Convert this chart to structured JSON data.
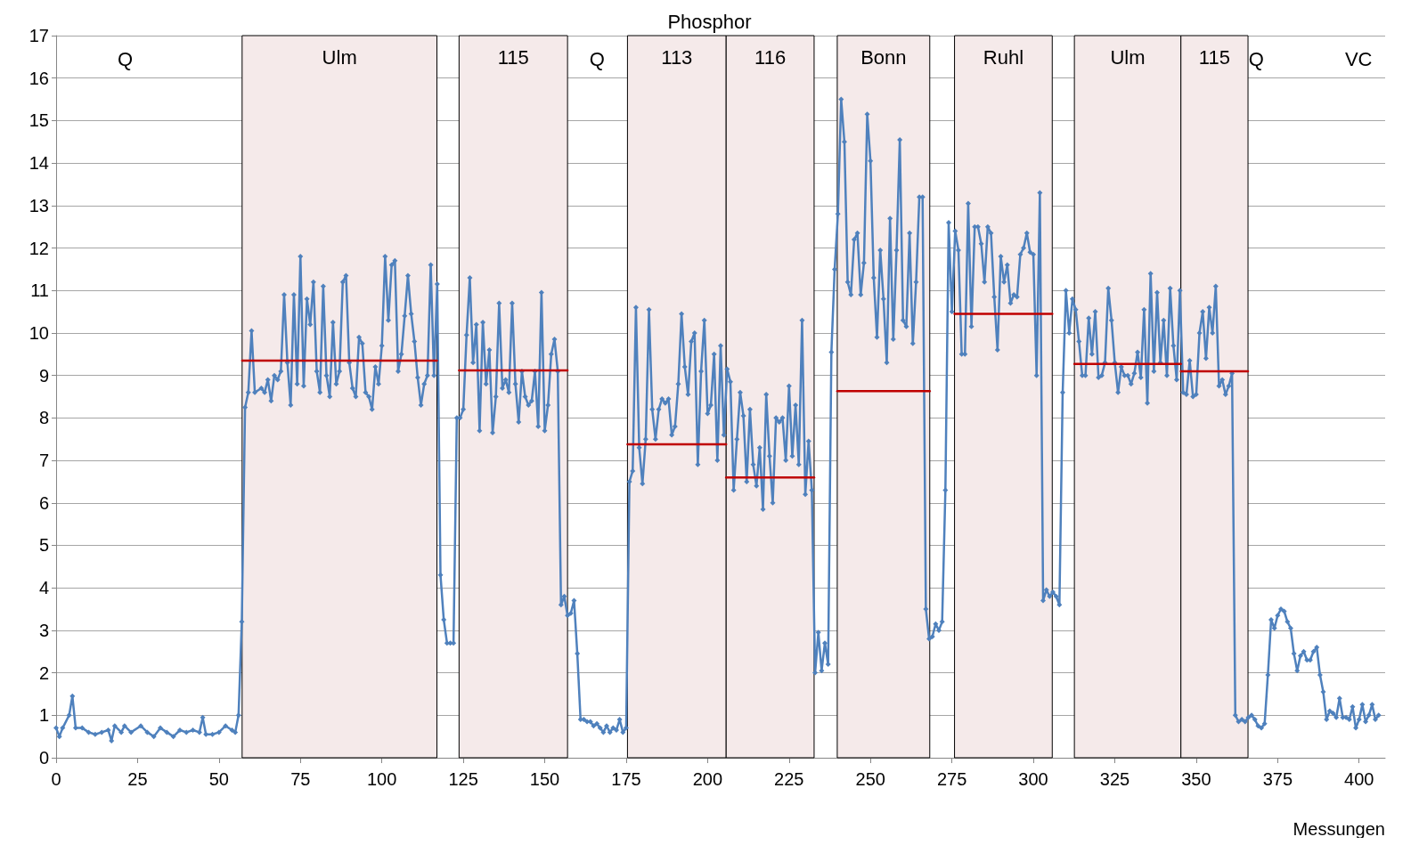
{
  "chart_data": {
    "type": "line",
    "title": "Phosphor",
    "xlabel": "Messungen",
    "xlim": [
      0,
      408
    ],
    "xticks": [
      0,
      25,
      50,
      75,
      100,
      125,
      150,
      175,
      200,
      225,
      250,
      275,
      300,
      325,
      350,
      375,
      400
    ],
    "ylim": [
      0,
      17
    ],
    "yticks": [
      0,
      1,
      2,
      3,
      4,
      5,
      6,
      7,
      8,
      9,
      10,
      11,
      12,
      13,
      14,
      15,
      16,
      17
    ],
    "grid": "y",
    "marker": "diamond",
    "line_style": "solid",
    "annotations": [
      "Q",
      "Q",
      "Q",
      "VC"
    ],
    "bands": [
      {
        "axis": "x",
        "from": 57.1,
        "to": 116.9,
        "label": "Ulm",
        "color": "#f5eaea"
      },
      {
        "axis": "x",
        "from": 123.7,
        "to": 157,
        "label": "115",
        "color": "#f5eaea"
      },
      {
        "axis": "x",
        "from": 175.4,
        "to": 205.7,
        "label": "113",
        "color": "#f5eaea"
      },
      {
        "axis": "x",
        "from": 205.7,
        "to": 232.7,
        "label": "116",
        "color": "#f5eaea"
      },
      {
        "axis": "x",
        "from": 239.8,
        "to": 268.2,
        "label": "Bonn",
        "color": "#f5eaea"
      },
      {
        "axis": "x",
        "from": 275.8,
        "to": 305.8,
        "label": "Ruhl",
        "color": "#f5eaea"
      },
      {
        "axis": "x",
        "from": 312.6,
        "to": 345.3,
        "label": "Ulm",
        "color": "#f5eaea"
      },
      {
        "axis": "x",
        "from": 345.3,
        "to": 365.9,
        "label": "115",
        "color": "#f5eaea"
      }
    ],
    "series": [
      {
        "color": "#4f81bd",
        "x": [
          0,
          1,
          2,
          4,
          5,
          6,
          8,
          10,
          12,
          14,
          16,
          17,
          18,
          20,
          21,
          23,
          26,
          28,
          30,
          32,
          34,
          36,
          38,
          40,
          42,
          44,
          45,
          46,
          48,
          50,
          52,
          54,
          55,
          56,
          57,
          58,
          59,
          60,
          61,
          63,
          64,
          65,
          66,
          67,
          68,
          69,
          70,
          71,
          72,
          73,
          74,
          75,
          76,
          77,
          78,
          79,
          80,
          81,
          82,
          83,
          84,
          85,
          86,
          87,
          88,
          89,
          90,
          91,
          92,
          93,
          94,
          95,
          96,
          97,
          98,
          99,
          100,
          101,
          102,
          103,
          104,
          105,
          106,
          107,
          108,
          109,
          110,
          111,
          112,
          113,
          114,
          115,
          116,
          117,
          118,
          119,
          120,
          121,
          122,
          123,
          124,
          125,
          126,
          127,
          128,
          129,
          130,
          131,
          132,
          133,
          134,
          135,
          136,
          137,
          138,
          139,
          140,
          141,
          142,
          143,
          144,
          145,
          146,
          147,
          148,
          149,
          150,
          151,
          152,
          153,
          154,
          155,
          156,
          157,
          158,
          159,
          160,
          161,
          162,
          163,
          164,
          165,
          166,
          167,
          168,
          169,
          170,
          171,
          172,
          173,
          174,
          175,
          176,
          177,
          178,
          179,
          180,
          181,
          182,
          183,
          184,
          185,
          186,
          187,
          188,
          189,
          190,
          191,
          192,
          193,
          194,
          195,
          196,
          197,
          198,
          199,
          200,
          201,
          202,
          203,
          204,
          205,
          206,
          207,
          208,
          209,
          210,
          211,
          212,
          213,
          214,
          215,
          216,
          217,
          218,
          219,
          220,
          221,
          222,
          223,
          224,
          225,
          226,
          227,
          228,
          229,
          230,
          231,
          232,
          233,
          234,
          235,
          236,
          237,
          238,
          239,
          240,
          241,
          242,
          243,
          244,
          245,
          246,
          247,
          248,
          249,
          250,
          251,
          252,
          253,
          254,
          255,
          256,
          257,
          258,
          259,
          260,
          261,
          262,
          263,
          264,
          265,
          266,
          267,
          268,
          269,
          270,
          271,
          272,
          273,
          274,
          275,
          276,
          277,
          278,
          279,
          280,
          281,
          282,
          283,
          284,
          285,
          286,
          287,
          288,
          289,
          290,
          291,
          292,
          293,
          294,
          295,
          296,
          297,
          298,
          299,
          300,
          301,
          302,
          303,
          304,
          305,
          306,
          307,
          308,
          309,
          310,
          311,
          312,
          313,
          314,
          315,
          316,
          317,
          318,
          319,
          320,
          321,
          322,
          323,
          324,
          325,
          326,
          327,
          328,
          329,
          330,
          331,
          332,
          333,
          334,
          335,
          336,
          337,
          338,
          339,
          340,
          341,
          342,
          343,
          344,
          345,
          346,
          347,
          348,
          349,
          350,
          351,
          352,
          353,
          354,
          355,
          356,
          357,
          358,
          359,
          360,
          361,
          362,
          363,
          364,
          365,
          366,
          367,
          368,
          369,
          370,
          371,
          372,
          373,
          374,
          375,
          376,
          377,
          378,
          379,
          380,
          381,
          382,
          383,
          384,
          385,
          386,
          387,
          388,
          389,
          390,
          391,
          392,
          393,
          394,
          395,
          396,
          397,
          398,
          399,
          400,
          401,
          402,
          403,
          404,
          405,
          406
        ],
        "values": [
          0.7,
          0.5,
          0.7,
          1.0,
          1.45,
          0.7,
          0.7,
          0.6,
          0.55,
          0.6,
          0.65,
          0.4,
          0.75,
          0.6,
          0.75,
          0.6,
          0.75,
          0.6,
          0.5,
          0.7,
          0.6,
          0.5,
          0.65,
          0.6,
          0.65,
          0.6,
          0.95,
          0.55,
          0.55,
          0.6,
          0.75,
          0.65,
          0.6,
          1.0,
          3.2,
          8.25,
          8.6,
          10.05,
          8.6,
          8.7,
          8.6,
          8.9,
          8.4,
          9.0,
          8.9,
          9.1,
          10.9,
          9.3,
          8.3,
          10.9,
          8.8,
          11.8,
          8.75,
          10.8,
          10.2,
          11.2,
          9.1,
          8.6,
          11.1,
          9.0,
          8.5,
          10.25,
          8.8,
          9.1,
          11.2,
          11.35,
          9.3,
          8.7,
          8.5,
          9.9,
          9.75,
          8.6,
          8.5,
          8.2,
          9.2,
          8.8,
          9.7,
          11.8,
          10.3,
          11.6,
          11.7,
          9.1,
          9.5,
          10.4,
          11.35,
          10.45,
          9.8,
          8.95,
          8.3,
          8.8,
          9.0,
          11.6,
          9.0,
          11.15,
          4.3,
          3.25,
          2.7,
          2.7,
          2.7,
          8.0,
          8.0,
          8.2,
          9.95,
          11.3,
          9.3,
          10.2,
          7.7,
          10.25,
          8.8,
          9.6,
          7.65,
          8.5,
          10.7,
          8.7,
          8.9,
          8.6,
          10.7,
          8.8,
          7.9,
          9.1,
          8.5,
          8.3,
          8.4,
          9.1,
          7.8,
          10.95,
          7.7,
          8.3,
          9.5,
          9.85,
          9.1,
          3.6,
          3.8,
          3.35,
          3.4,
          3.7,
          2.45,
          0.9,
          0.9,
          0.85,
          0.85,
          0.75,
          0.8,
          0.7,
          0.6,
          0.75,
          0.6,
          0.7,
          0.65,
          0.9,
          0.6,
          0.7,
          6.5,
          6.75,
          10.6,
          7.3,
          6.45,
          7.5,
          10.55,
          8.2,
          7.5,
          8.2,
          8.45,
          8.35,
          8.45,
          7.6,
          7.8,
          8.8,
          10.45,
          9.2,
          8.55,
          9.8,
          10.0,
          6.9,
          9.1,
          10.3,
          8.1,
          8.3,
          9.5,
          7.0,
          9.7,
          7.6,
          9.15,
          8.85,
          6.3,
          7.5,
          8.6,
          8.05,
          6.5,
          8.2,
          6.9,
          6.4,
          7.3,
          5.85,
          8.55,
          7.1,
          6.0,
          8.0,
          7.9,
          8.0,
          7.0,
          8.75,
          7.1,
          8.3,
          6.9,
          10.3,
          6.2,
          7.45,
          6.3,
          2.0,
          2.95,
          2.05,
          2.7,
          2.2,
          9.55,
          11.5,
          12.8,
          15.5,
          14.5,
          11.2,
          10.9,
          12.2,
          12.35,
          10.9,
          11.65,
          15.15,
          14.05,
          11.3,
          9.9,
          11.95,
          10.8,
          9.3,
          12.7,
          9.85,
          11.95,
          14.55,
          10.3,
          10.15,
          12.35,
          9.75,
          11.2,
          13.2,
          13.2,
          3.5,
          2.8,
          2.85,
          3.15,
          3.0,
          3.2,
          6.3,
          12.6,
          10.5,
          12.4,
          11.95,
          9.5,
          9.5,
          13.05,
          10.15,
          12.5,
          12.5,
          12.1,
          11.2,
          12.5,
          12.35,
          10.85,
          9.6,
          11.8,
          11.2,
          11.6,
          10.7,
          10.9,
          10.85,
          11.85,
          12.0,
          12.35,
          11.9,
          11.85,
          9.0,
          13.3,
          3.7,
          3.95,
          3.8,
          3.9,
          3.8,
          3.6,
          8.6,
          11.0,
          10.0,
          10.8,
          10.55,
          9.8,
          9.0,
          9.0,
          10.35,
          9.5,
          10.5,
          8.95,
          9.0,
          9.3,
          11.05,
          10.3,
          9.3,
          8.6,
          9.2,
          9.0,
          9.0,
          8.8,
          9.05,
          9.55,
          8.95,
          10.55,
          8.35,
          11.4,
          9.1,
          10.95,
          9.3,
          10.3,
          9.0,
          11.05,
          9.7,
          8.9,
          11.0,
          8.6,
          8.55,
          9.35,
          8.5,
          8.55,
          10.0,
          10.5,
          9.4,
          10.6,
          10.0,
          11.1,
          8.75,
          8.9,
          8.55,
          8.75,
          9.05,
          1.0,
          0.85,
          0.9,
          0.85,
          0.95,
          1.0,
          0.9,
          0.75,
          0.7,
          0.8,
          1.95,
          3.25,
          3.05,
          3.35,
          3.5,
          3.45,
          3.2,
          3.05,
          2.45,
          2.05,
          2.4,
          2.5,
          2.3,
          2.3,
          2.5,
          2.6,
          1.95,
          1.55,
          0.9,
          1.1,
          1.05,
          0.95,
          1.4,
          0.95,
          0.95,
          0.9,
          1.2,
          0.7,
          0.9,
          1.25,
          0.85,
          1.0,
          1.25,
          0.9,
          1.0
        ]
      },
      {
        "color": "#c00000",
        "marker": "none",
        "x": [
          57.1,
          116.9
        ],
        "values": [
          9.35,
          9.35
        ]
      },
      {
        "color": "#c00000",
        "marker": "none",
        "x": [
          123.7,
          157
        ],
        "values": [
          9.12,
          9.12
        ]
      },
      {
        "color": "#c00000",
        "marker": "none",
        "x": [
          175.4,
          205.7
        ],
        "values": [
          7.38,
          7.38
        ]
      },
      {
        "color": "#c00000",
        "marker": "none",
        "x": [
          205.7,
          232.7
        ],
        "values": [
          6.6,
          6.6
        ]
      },
      {
        "color": "#c00000",
        "marker": "none",
        "x": [
          239.8,
          268.2
        ],
        "values": [
          8.63,
          8.63
        ]
      },
      {
        "color": "#c00000",
        "marker": "none",
        "x": [
          275.8,
          305.8
        ],
        "values": [
          10.45,
          10.45
        ]
      },
      {
        "color": "#c00000",
        "marker": "none",
        "x": [
          312.6,
          345.3
        ],
        "values": [
          9.27,
          9.27
        ]
      },
      {
        "color": "#c00000",
        "marker": "none",
        "x": [
          345.3,
          365.9
        ],
        "values": [
          9.1,
          9.1
        ]
      }
    ]
  }
}
